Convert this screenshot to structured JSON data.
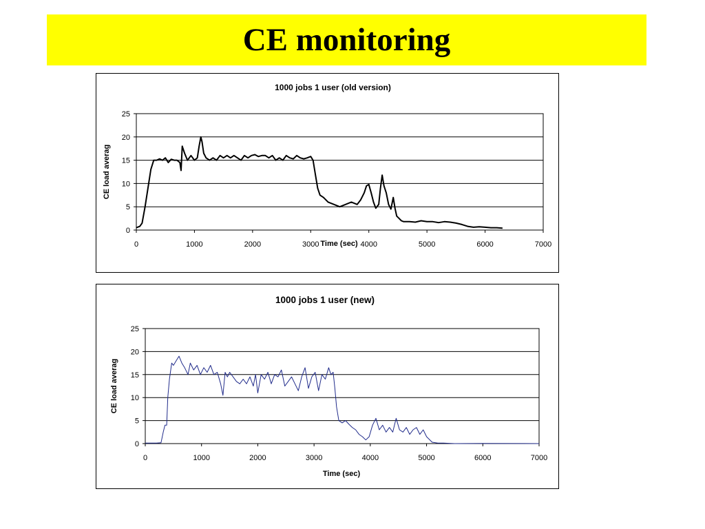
{
  "slide": {
    "title": "CE monitoring"
  },
  "chart_data": [
    {
      "type": "line",
      "title": "1000 jobs 1 user (old version)",
      "xlabel": "Time (sec)",
      "ylabel": "CE load averag",
      "xlim": [
        0,
        7000
      ],
      "ylim": [
        0,
        25
      ],
      "xticks": [
        0,
        1000,
        2000,
        3000,
        4000,
        5000,
        6000,
        7000
      ],
      "yticks": [
        0,
        5,
        10,
        15,
        20,
        25
      ],
      "grid": true,
      "legend": "none",
      "series": [
        {
          "color": "#000000",
          "x": [
            0,
            60,
            100,
            150,
            200,
            250,
            300,
            350,
            400,
            450,
            500,
            550,
            600,
            650,
            700,
            750,
            770,
            790,
            830,
            880,
            940,
            1000,
            1050,
            1080,
            1110,
            1130,
            1160,
            1200,
            1260,
            1320,
            1380,
            1440,
            1500,
            1560,
            1620,
            1680,
            1740,
            1800,
            1860,
            1920,
            1980,
            2040,
            2100,
            2160,
            2220,
            2280,
            2340,
            2400,
            2460,
            2520,
            2580,
            2640,
            2700,
            2760,
            2820,
            2880,
            2940,
            3000,
            3040,
            3080,
            3120,
            3160,
            3220,
            3300,
            3400,
            3500,
            3600,
            3700,
            3800,
            3860,
            3920,
            3960,
            4000,
            4040,
            4080,
            4120,
            4170,
            4200,
            4230,
            4260,
            4300,
            4340,
            4380,
            4420,
            4450,
            4480,
            4520,
            4560,
            4600,
            4700,
            4800,
            4900,
            5000,
            5100,
            5200,
            5300,
            5400,
            5500,
            5600,
            5700,
            5800,
            5900,
            6000,
            6100,
            6200,
            6300
          ],
          "y": [
            0.5,
            0.8,
            1.5,
            5,
            9,
            13,
            15,
            15,
            15.3,
            15,
            15.5,
            14.5,
            15.2,
            15,
            15,
            14.5,
            12.8,
            18,
            16.5,
            15,
            16,
            15,
            15.5,
            18,
            20,
            19,
            16.5,
            15.5,
            15,
            15.5,
            15,
            16,
            15.5,
            16,
            15.5,
            16,
            15.5,
            15,
            16,
            15.5,
            16,
            16.2,
            15.8,
            16,
            16,
            15.5,
            16,
            15,
            15.5,
            15,
            16,
            15.5,
            15.3,
            16,
            15.5,
            15.3,
            15.5,
            15.8,
            15,
            12,
            9,
            7.5,
            7,
            6,
            5.5,
            5,
            5.5,
            6,
            5.5,
            6.5,
            8,
            9.5,
            9.8,
            8,
            6,
            4.7,
            5.5,
            9,
            11.8,
            9.5,
            8,
            5.5,
            4.5,
            7,
            4.7,
            3,
            2.5,
            2,
            1.8,
            1.8,
            1.7,
            2,
            1.8,
            1.8,
            1.6,
            1.8,
            1.7,
            1.5,
            1.2,
            0.8,
            0.6,
            0.7,
            0.6,
            0.5,
            0.5,
            0.4
          ]
        }
      ]
    },
    {
      "type": "line",
      "title": "1000 jobs 1 user (new)",
      "xlabel": "Time (sec)",
      "ylabel": "CE load averag",
      "xlim": [
        0,
        7000
      ],
      "ylim": [
        0,
        25
      ],
      "xticks": [
        0,
        1000,
        2000,
        3000,
        4000,
        5000,
        6000,
        7000
      ],
      "yticks": [
        0,
        5,
        10,
        15,
        20,
        25
      ],
      "grid": true,
      "legend": "none",
      "series": [
        {
          "color": "#1f2a8a",
          "x": [
            0,
            100,
            200,
            280,
            320,
            350,
            380,
            400,
            430,
            470,
            500,
            550,
            600,
            650,
            700,
            760,
            800,
            860,
            920,
            980,
            1040,
            1100,
            1160,
            1220,
            1280,
            1340,
            1380,
            1420,
            1460,
            1500,
            1560,
            1620,
            1680,
            1740,
            1800,
            1860,
            1920,
            1960,
            2000,
            2060,
            2120,
            2180,
            2240,
            2300,
            2360,
            2420,
            2480,
            2540,
            2600,
            2660,
            2720,
            2780,
            2840,
            2900,
            2960,
            3020,
            3080,
            3140,
            3200,
            3260,
            3300,
            3340,
            3370,
            3400,
            3440,
            3500,
            3560,
            3620,
            3680,
            3740,
            3800,
            3860,
            3920,
            3980,
            4040,
            4100,
            4160,
            4220,
            4280,
            4340,
            4400,
            4460,
            4520,
            4580,
            4640,
            4700,
            4760,
            4820,
            4880,
            4940,
            5000,
            5100,
            5200,
            5300,
            5500,
            6000,
            7000
          ],
          "y": [
            0.1,
            0.1,
            0.1,
            0.2,
            2.5,
            4,
            4,
            10,
            14,
            17.5,
            17,
            18,
            19,
            17.5,
            16.5,
            15,
            17.5,
            16,
            17,
            15,
            16.5,
            15.5,
            17,
            15,
            15.5,
            13,
            10.5,
            15.5,
            14.5,
            15.5,
            14.5,
            13.5,
            13,
            14,
            13,
            14.5,
            12.5,
            15,
            11,
            15,
            14,
            15.5,
            13,
            15,
            14.5,
            16,
            12.5,
            13.5,
            14.5,
            13,
            11.5,
            14.5,
            16.5,
            12,
            14.5,
            15.5,
            11.5,
            15,
            14,
            16.5,
            15,
            15.5,
            12,
            8,
            5,
            4.5,
            5,
            4.2,
            3.5,
            3,
            2,
            1.5,
            0.8,
            1.5,
            4,
            5.5,
            3,
            4,
            2.5,
            3.5,
            2.5,
            5.5,
            3,
            2.5,
            3.5,
            2,
            3,
            3.5,
            2,
            3,
            1.5,
            0.3,
            0.1,
            0.1,
            0,
            0.05,
            0
          ]
        }
      ]
    }
  ]
}
